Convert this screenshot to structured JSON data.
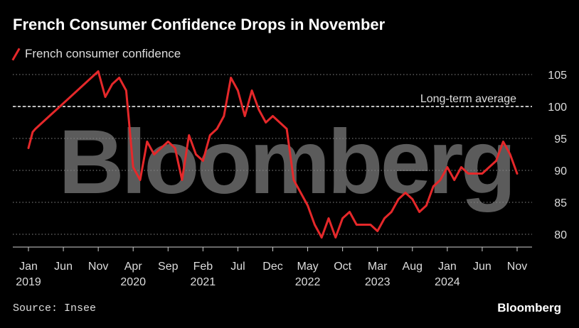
{
  "header": {
    "title": "French Consumer Confidence Drops in November"
  },
  "footer": {
    "source": "Source: Insee",
    "brand": "Bloomberg"
  },
  "watermark": "Bloomberg",
  "colors": {
    "series": "#e5282a",
    "background": "#000000",
    "grid": "#888888",
    "text": "#dddddd"
  },
  "chart_data": {
    "type": "line",
    "title": "French Consumer Confidence Drops in November",
    "xlabel": "",
    "ylabel": "",
    "ylim": [
      78,
      106
    ],
    "yticks": [
      80,
      85,
      90,
      95,
      100,
      105
    ],
    "xlim": [
      0,
      70
    ],
    "grid": "horizontal dotted",
    "legend": "top-left",
    "xticks": [
      {
        "i": 0,
        "label": "Jan",
        "year": "2019"
      },
      {
        "i": 5,
        "label": "Jun",
        "year": ""
      },
      {
        "i": 10,
        "label": "Nov",
        "year": ""
      },
      {
        "i": 15,
        "label": "Apr",
        "year": "2020"
      },
      {
        "i": 20,
        "label": "Sep",
        "year": ""
      },
      {
        "i": 25,
        "label": "Feb",
        "year": "2021"
      },
      {
        "i": 30,
        "label": "Jul",
        "year": ""
      },
      {
        "i": 35,
        "label": "Dec",
        "year": ""
      },
      {
        "i": 40,
        "label": "May",
        "year": "2022"
      },
      {
        "i": 45,
        "label": "Oct",
        "year": ""
      },
      {
        "i": 50,
        "label": "Mar",
        "year": "2023"
      },
      {
        "i": 55,
        "label": "Aug",
        "year": ""
      },
      {
        "i": 60,
        "label": "Jan",
        "year": "2024"
      },
      {
        "i": 65,
        "label": "Jun",
        "year": ""
      },
      {
        "i": 70,
        "label": "Nov",
        "year": ""
      }
    ],
    "series": [
      {
        "name": "French consumer confidence",
        "color": "#e5282a",
        "x": [
          0,
          0.6,
          1,
          2,
          3,
          4,
          5,
          6,
          7,
          8,
          9,
          10,
          11,
          12,
          13,
          14,
          15,
          16,
          17,
          18,
          19,
          20,
          21,
          22,
          23,
          24,
          25,
          26,
          27,
          28,
          29,
          30,
          31,
          32,
          33,
          34,
          35,
          36,
          37,
          38,
          39,
          40,
          41,
          42,
          43,
          44,
          45,
          46,
          47,
          48,
          49,
          50,
          51,
          52,
          53,
          54,
          55,
          56,
          57,
          58,
          59,
          60,
          61,
          62,
          63,
          64,
          65,
          66,
          67,
          68,
          69,
          70
        ],
        "values": [
          93.5,
          96,
          96.5,
          97.5,
          98.5,
          99.5,
          100.5,
          101.5,
          102.5,
          103.5,
          104.5,
          105.5,
          101.5,
          103.5,
          104.5,
          102.5,
          90.5,
          88.5,
          94.5,
          92.5,
          93.5,
          94.5,
          93.5,
          88.5,
          95.5,
          92.5,
          91.5,
          95.5,
          96.5,
          98.5,
          104.5,
          102.5,
          98.5,
          102.5,
          99.5,
          97.5,
          98.5,
          97.5,
          96.5,
          88.5,
          86.5,
          84.5,
          81.5,
          79.5,
          82.5,
          79.5,
          82.5,
          83.5,
          81.5,
          81.5,
          81.5,
          80.5,
          82.5,
          83.5,
          85.5,
          86.5,
          85.5,
          83.5,
          84.5,
          87.5,
          88.5,
          90.5,
          88.5,
          90.5,
          89.5,
          89.5,
          89.5,
          90.5,
          91.5,
          94.5,
          92.5,
          89.5
        ]
      }
    ],
    "reference_line": {
      "label": "Long-term average",
      "value": 100
    }
  }
}
